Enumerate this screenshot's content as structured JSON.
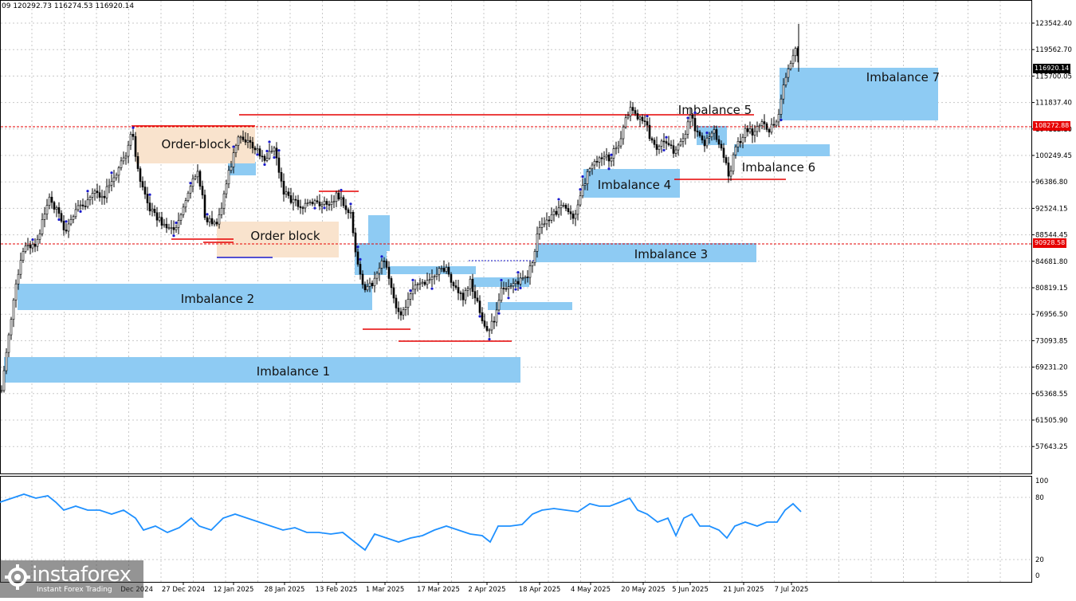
{
  "header": {
    "ohlc_text": "09 120292.73 116274.53 116920.14"
  },
  "price_axis": {
    "labels": [
      "123542.40",
      "119562.70",
      "115700.05",
      "111837.40",
      "104112.10",
      "100249.45",
      "96386.80",
      "92524.15",
      "88544.45",
      "84681.80",
      "80819.15",
      "76956.50",
      "73093.85",
      "69231.20",
      "65368.55",
      "61505.90",
      "57643.25"
    ]
  },
  "time_axis": {
    "labels": [
      "27 Dec 2024",
      "12 Jan 2025",
      "28 Jan 2025",
      "13 Feb 2025",
      "1 Mar 2025",
      "17 Mar 2025",
      "2 Apr 2025",
      "18 Apr 2025",
      "4 May 2025",
      "20 May 2025",
      "5 Jun 2025",
      "21 Jun 2025",
      "7 Jul 2025"
    ],
    "partial_label": "Dec 2024"
  },
  "price_tags": {
    "current": {
      "text": "116920.14",
      "color": "#000000"
    },
    "level_high": {
      "text": "108272.88",
      "color": "#e60000"
    },
    "level_low": {
      "text": "90928.58",
      "color": "#e60000"
    }
  },
  "zones": [
    {
      "label": "Imbalance 1",
      "kind": "imbalance"
    },
    {
      "label": "Imbalance 2",
      "kind": "imbalance"
    },
    {
      "label": "Imbalance 3",
      "kind": "imbalance"
    },
    {
      "label": "Imbalance 4",
      "kind": "imbalance"
    },
    {
      "label": "Imbalance 5",
      "kind": "imbalance"
    },
    {
      "label": "Imbalance 6",
      "kind": "imbalance"
    },
    {
      "label": "Imbalance 7",
      "kind": "imbalance"
    },
    {
      "label": "Order-block",
      "kind": "order_block"
    },
    {
      "label": "Order block",
      "kind": "order_block"
    }
  ],
  "indicator": {
    "scale_labels": [
      "100",
      "80",
      "20",
      "0"
    ],
    "line_color": "#1e90ff"
  },
  "colors": {
    "imbalance": "#8ecbf3",
    "order_block": "#f9e3cd",
    "level_line": "#e60000",
    "candle": "#000000",
    "marker": "#1a1acc"
  },
  "branding": {
    "name": "instaforex",
    "tagline": "Instant Forex Trading"
  }
}
